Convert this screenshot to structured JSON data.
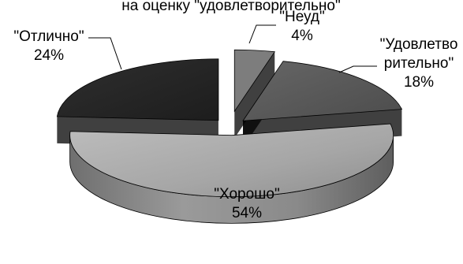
{
  "chart_data": {
    "type": "pie",
    "style": "3d-exploded",
    "title": "на оценку \"удовлетворительно\"",
    "categories": [
      "\"Неуд\"",
      "\"Удовлетво рительно\"",
      "\"Хорошо\"",
      "\"Отлично\""
    ],
    "values": [
      4,
      18,
      54,
      24
    ],
    "labels": [
      {
        "name_lines": [
          "\"Неуд\""
        ],
        "pct": "4%"
      },
      {
        "name_lines": [
          "\"Удовлетво",
          "рительно\""
        ],
        "pct": "18%"
      },
      {
        "name_lines": [
          "\"Хорошо\""
        ],
        "pct": "54%"
      },
      {
        "name_lines": [
          "\"Отлично\""
        ],
        "pct": "24%"
      }
    ],
    "colors": {
      "neud": "#7d7d7d",
      "udovl": "#5a5a5a",
      "horosho": "#a8a8a8",
      "otlichno": "#2a2a2a"
    },
    "legend": "none",
    "grid": false
  }
}
